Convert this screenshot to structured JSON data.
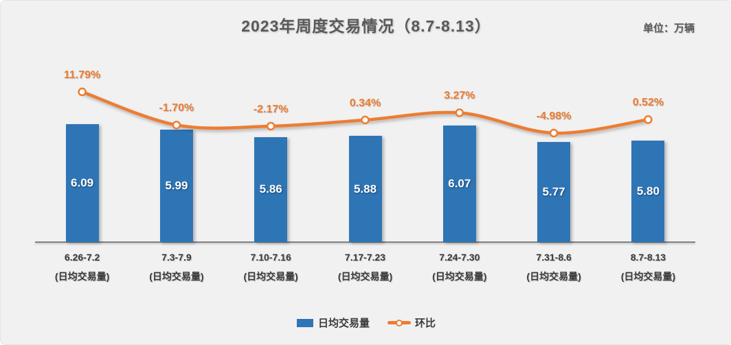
{
  "header": {
    "title": "2023年周度交易情况（8.7-8.13）",
    "unit_label": "单位：万辆"
  },
  "chart_data": {
    "type": "bar+line",
    "title": "2023年周度交易情况（8.7-8.13）",
    "unit": "万辆",
    "categories": [
      "6.26-7.2",
      "7.3-7.9",
      "7.10-7.16",
      "7.17-7.23",
      "7.24-7.30",
      "7.31-8.6",
      "8.7-8.13"
    ],
    "category_sublabel": "(日均交易量)",
    "series": [
      {
        "name": "日均交易量",
        "type": "bar",
        "color": "#2E75B6",
        "values": [
          6.09,
          5.99,
          5.86,
          5.88,
          6.07,
          5.77,
          5.8
        ],
        "labels": [
          "6.09",
          "5.99",
          "5.86",
          "5.88",
          "6.07",
          "5.77",
          "5.80"
        ]
      },
      {
        "name": "环比",
        "type": "line",
        "color": "#ED7D31",
        "marker": "circle-open",
        "values": [
          11.79,
          -1.7,
          -2.17,
          0.34,
          3.27,
          -4.98,
          0.52
        ],
        "labels": [
          "11.79%",
          "-1.70%",
          "-2.17%",
          "0.34%",
          "3.27%",
          "-4.98%",
          "0.52%"
        ]
      }
    ],
    "bar_ylim": [
      4,
      7
    ],
    "line_ylim": [
      -10,
      14
    ],
    "grid": false,
    "x_axis_line": true,
    "legend_position": "bottom"
  },
  "colors": {
    "background": "#F1F1F2",
    "bar": "#2E75B6",
    "line": "#ED7D31",
    "title_text": "#595959",
    "axis_line": "#7F7F7F",
    "axis_text": "#3A3A3A"
  }
}
